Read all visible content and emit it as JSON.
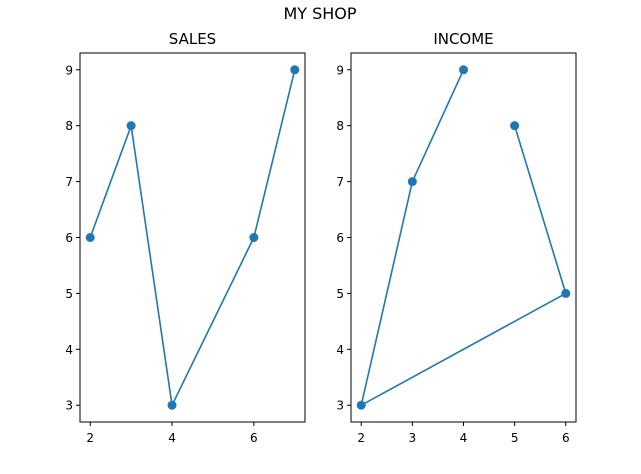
{
  "suptitle": "MY SHOP",
  "colors": {
    "series": "#1f77b4"
  },
  "chart_data": [
    {
      "type": "line",
      "title": "SALES",
      "xlabel": "",
      "ylabel": "",
      "marker": "circle",
      "grid": false,
      "xlim": [
        1.75,
        7.25
      ],
      "ylim": [
        2.7,
        9.3
      ],
      "xticks": [
        2,
        4,
        6
      ],
      "yticks": [
        3,
        4,
        5,
        6,
        7,
        8,
        9
      ],
      "x": [
        2,
        3,
        4,
        6,
        7
      ],
      "y": [
        6,
        8,
        3,
        6,
        9
      ]
    },
    {
      "type": "line",
      "title": "INCOME",
      "xlabel": "",
      "ylabel": "",
      "marker": "circle",
      "grid": false,
      "xlim": [
        1.8,
        6.2
      ],
      "ylim": [
        2.7,
        9.3
      ],
      "xticks": [
        2,
        3,
        4,
        5,
        6
      ],
      "yticks": [
        3,
        4,
        5,
        6,
        7,
        8,
        9
      ],
      "x": [
        4,
        3,
        2,
        6,
        5
      ],
      "y": [
        9,
        7,
        3,
        5,
        8
      ]
    }
  ]
}
